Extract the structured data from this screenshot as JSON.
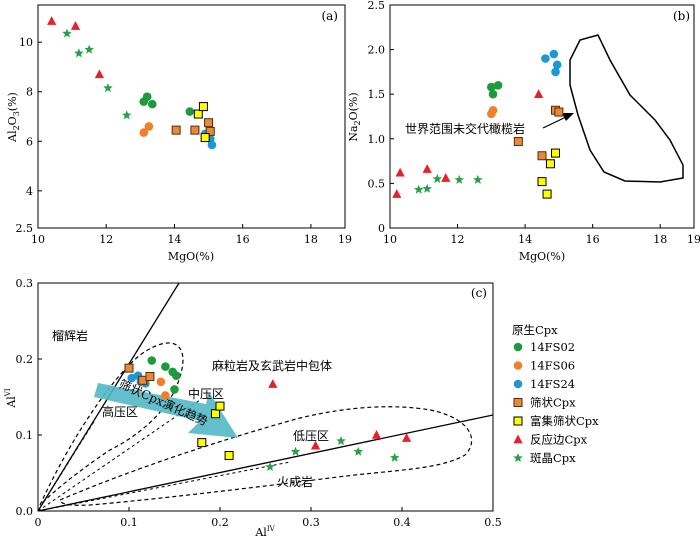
{
  "colors": {
    "green": "#1e9a3c",
    "orange": "#f07f2a",
    "blue": "#1d97d6",
    "sieve_fill": "#e58a3a",
    "sieve_stroke": "#5a2b08",
    "rich_fill": "#ffff00",
    "red": "#e8202a",
    "star": "#2aa148",
    "arrow": "#53b8c7"
  },
  "panel_a": {
    "tag": "(a)",
    "xlabel": "MgO(%)",
    "ylabel": "Al2O3(%)",
    "xlim": [
      10,
      19
    ],
    "ylim": [
      2.5,
      11.5
    ],
    "xticks": [
      "10",
      "12",
      "14",
      "16",
      "18",
      "19"
    ],
    "yticks": [
      "2.5",
      "4",
      "6",
      "8",
      "10"
    ]
  },
  "panel_b": {
    "tag": "(b)",
    "xlabel": "MgO(%)",
    "ylabel": "Na2O(%)",
    "xlim": [
      10,
      19
    ],
    "ylim": [
      0,
      2.5
    ],
    "xticks": [
      "10",
      "12",
      "14",
      "16",
      "18",
      "19"
    ],
    "yticks": [
      "0",
      "0.5",
      "1.0",
      "1.5",
      "2.0",
      "2.5"
    ],
    "annotation": "世界范围未交代橄榄岩"
  },
  "panel_c": {
    "tag": "(c)",
    "xlabel": "AlIV",
    "ylabel": "AlVI",
    "xlim": [
      0,
      0.5
    ],
    "ylim": [
      0,
      0.3
    ],
    "xticks": [
      "0",
      "0.1",
      "0.2",
      "0.3",
      "0.4",
      "0.5"
    ],
    "yticks": [
      "0.0",
      "0.1",
      "0.2",
      "0.3"
    ],
    "labels": {
      "eclogite": "榴辉岩",
      "granulite": "麻粒岩及玄武岩中包体",
      "high": "高压区",
      "mid": "中压区",
      "low": "低压区",
      "igneous": "火成岩",
      "trend": "筛状Cpx演化趋势"
    }
  },
  "legend": {
    "title": "原生Cpx",
    "items": [
      {
        "label": "14FS02",
        "key": "green"
      },
      {
        "label": "14FS06",
        "key": "orange"
      },
      {
        "label": "14FS24",
        "key": "blue"
      },
      {
        "label": "筛状Cpx",
        "key": "sieve"
      },
      {
        "label": "富集筛状Cpx",
        "key": "rich"
      },
      {
        "label": "反应边Cpx",
        "key": "red"
      },
      {
        "label": "斑晶Cpx",
        "key": "star"
      }
    ]
  },
  "chart_data": [
    {
      "type": "scatter",
      "title": "(a)",
      "xlabel": "MgO(%)",
      "ylabel": "Al2O3(%)",
      "xlim": [
        10,
        19
      ],
      "ylim": [
        2.5,
        11.5
      ],
      "series": [
        {
          "name": "14FS02",
          "points": [
            [
              13.1,
              7.6
            ],
            [
              13.2,
              7.8
            ],
            [
              13.35,
              7.5
            ],
            [
              14.45,
              7.2
            ]
          ]
        },
        {
          "name": "14FS06",
          "points": [
            [
              13.1,
              6.35
            ],
            [
              13.25,
              6.6
            ]
          ]
        },
        {
          "name": "14FS24",
          "points": [
            [
              14.9,
              6.3
            ],
            [
              15.05,
              6.1
            ],
            [
              15.1,
              5.85
            ]
          ]
        },
        {
          "name": "筛状Cpx",
          "points": [
            [
              14.05,
              6.45
            ],
            [
              14.6,
              6.45
            ],
            [
              15.0,
              6.75
            ],
            [
              15.05,
              6.4
            ]
          ]
        },
        {
          "name": "富集筛状Cpx",
          "points": [
            [
              14.7,
              7.1
            ],
            [
              14.85,
              7.4
            ],
            [
              14.9,
              6.15
            ]
          ]
        },
        {
          "name": "反应边Cpx",
          "points": [
            [
              10.4,
              10.85
            ],
            [
              11.1,
              10.65
            ],
            [
              11.8,
              8.7
            ]
          ]
        },
        {
          "name": "斑晶Cpx",
          "points": [
            [
              10.85,
              10.35
            ],
            [
              11.2,
              9.55
            ],
            [
              11.5,
              9.7
            ],
            [
              12.05,
              8.15
            ],
            [
              12.6,
              7.05
            ]
          ]
        }
      ]
    },
    {
      "type": "scatter",
      "title": "(b)",
      "xlabel": "MgO(%)",
      "ylabel": "Na2O(%)",
      "xlim": [
        10,
        19
      ],
      "ylim": [
        0,
        2.5
      ],
      "series": [
        {
          "name": "14FS02",
          "points": [
            [
              13.0,
              1.58
            ],
            [
              13.2,
              1.6
            ],
            [
              13.05,
              1.5
            ]
          ]
        },
        {
          "name": "14FS06",
          "points": [
            [
              13.0,
              1.28
            ],
            [
              13.05,
              1.32
            ]
          ]
        },
        {
          "name": "14FS24",
          "points": [
            [
              14.6,
              1.9
            ],
            [
              14.85,
              1.95
            ],
            [
              14.95,
              1.83
            ],
            [
              14.9,
              1.75
            ]
          ]
        },
        {
          "name": "筛状Cpx",
          "points": [
            [
              13.8,
              0.97
            ],
            [
              14.5,
              0.81
            ],
            [
              14.9,
              1.32
            ],
            [
              15.0,
              1.3
            ]
          ]
        },
        {
          "name": "富集筛状Cpx",
          "points": [
            [
              14.5,
              0.52
            ],
            [
              14.65,
              0.38
            ],
            [
              14.75,
              0.72
            ],
            [
              14.9,
              0.84
            ]
          ]
        },
        {
          "name": "反应边Cpx",
          "points": [
            [
              10.2,
              0.38
            ],
            [
              10.3,
              0.62
            ],
            [
              11.1,
              0.66
            ],
            [
              11.65,
              0.56
            ],
            [
              14.4,
              1.5
            ]
          ]
        },
        {
          "name": "斑晶Cpx",
          "points": [
            [
              10.85,
              0.43
            ],
            [
              11.1,
              0.44
            ],
            [
              11.4,
              0.55
            ],
            [
              12.05,
              0.54
            ],
            [
              12.6,
              0.54
            ]
          ]
        }
      ]
    },
    {
      "type": "scatter",
      "title": "(c)",
      "xlabel": "AlIV",
      "ylabel": "AlVI",
      "xlim": [
        0,
        0.5
      ],
      "ylim": [
        0,
        0.3
      ],
      "series": [
        {
          "name": "14FS02",
          "points": [
            [
              0.125,
              0.198
            ],
            [
              0.14,
              0.19
            ],
            [
              0.148,
              0.183
            ],
            [
              0.152,
              0.178
            ],
            [
              0.15,
              0.16
            ]
          ]
        },
        {
          "name": "14FS06",
          "points": [
            [
              0.135,
              0.17
            ],
            [
              0.14,
              0.152
            ]
          ]
        },
        {
          "name": "14FS24",
          "points": [
            [
              0.103,
              0.175
            ],
            [
              0.11,
              0.178
            ],
            [
              0.113,
              0.17
            ],
            [
              0.118,
              0.168
            ]
          ]
        },
        {
          "name": "筛状Cpx",
          "points": [
            [
              0.1,
              0.188
            ],
            [
              0.115,
              0.172
            ],
            [
              0.123,
              0.177
            ]
          ]
        },
        {
          "name": "富集筛状Cpx",
          "points": [
            [
              0.18,
              0.09
            ],
            [
              0.195,
              0.128
            ],
            [
              0.2,
              0.138
            ],
            [
              0.21,
              0.073
            ]
          ]
        },
        {
          "name": "反应边Cpx",
          "points": [
            [
              0.258,
              0.167
            ],
            [
              0.305,
              0.086
            ],
            [
              0.372,
              0.1
            ],
            [
              0.405,
              0.096
            ]
          ]
        },
        {
          "name": "斑晶Cpx",
          "points": [
            [
              0.255,
              0.058
            ],
            [
              0.283,
              0.078
            ],
            [
              0.333,
              0.092
            ],
            [
              0.352,
              0.078
            ],
            [
              0.392,
              0.07
            ]
          ]
        }
      ]
    }
  ]
}
